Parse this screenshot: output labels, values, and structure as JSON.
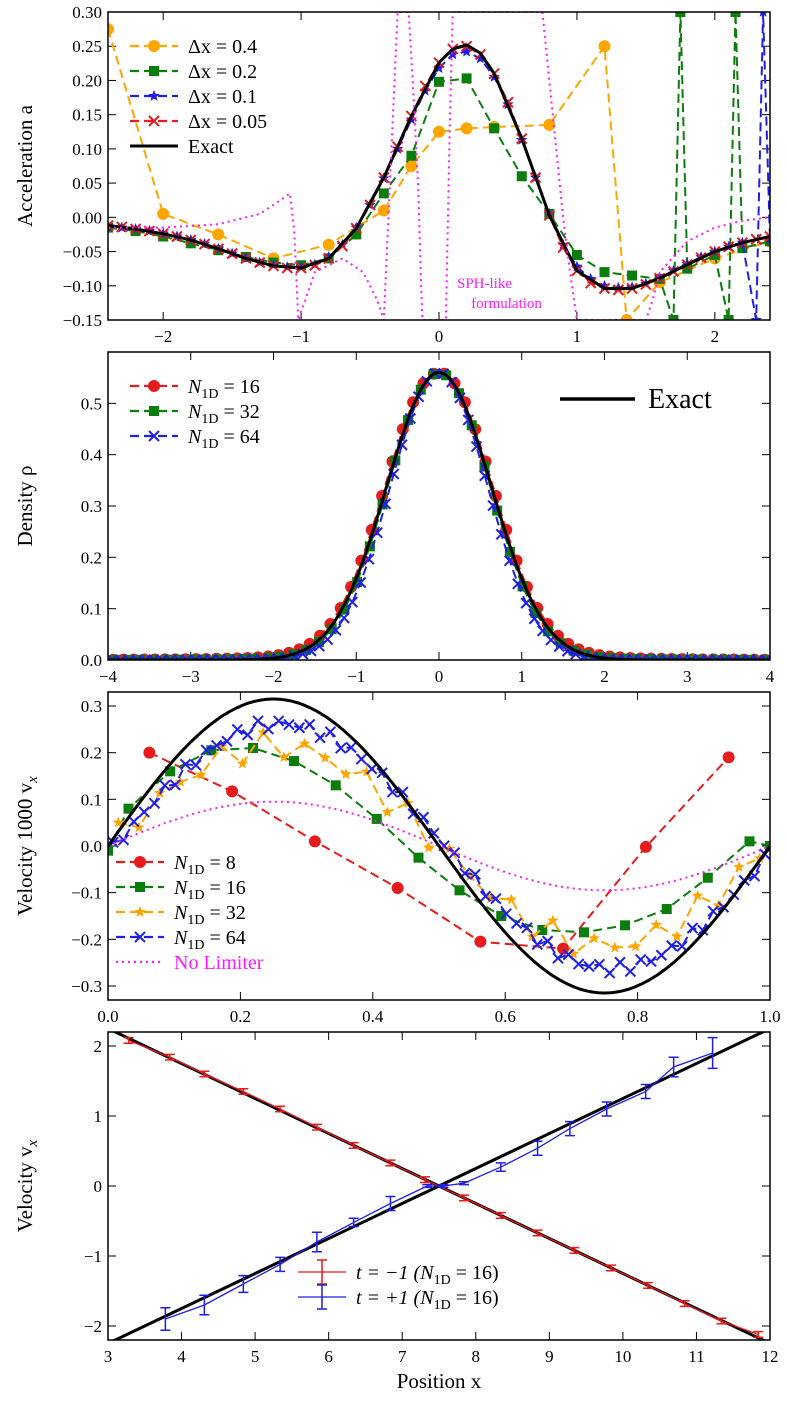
{
  "colors": {
    "orange": "#ffa500",
    "green": "#0b7d0b",
    "blue": "#1f1fe6",
    "red": "#e61c1c",
    "magenta": "#ff1aff",
    "exact": "#000000"
  },
  "chart_data": [
    {
      "type": "line",
      "id": "accel",
      "ylabel": "Acceleration a",
      "xlim": [
        -2.4,
        2.4
      ],
      "ylim": [
        -0.15,
        0.3
      ],
      "xticks": [
        -2,
        -1,
        0,
        1,
        2
      ],
      "yticks": [
        -0.15,
        -0.1,
        -0.05,
        0.0,
        0.05,
        0.1,
        0.15,
        0.2,
        0.25,
        0.3
      ],
      "ytick_labels": [
        "−0.15",
        "−0.10",
        "−0.05",
        "0.00",
        "0.05",
        "0.10",
        "0.15",
        "0.20",
        "0.25",
        "0.30"
      ],
      "xtick_labels": [
        "−2",
        "−1",
        "0",
        "1",
        "2"
      ],
      "annotation": {
        "line1": "SPH-like",
        "line2": "formulation",
        "x": 0.33,
        "y": -0.118
      },
      "legend": "top-left",
      "series": [
        {
          "name": "Δx = 0.4",
          "color_key": "orange",
          "marker": "circle",
          "dash": "dashed",
          "x": [
            -2.4,
            -2.0,
            -1.6,
            -1.2,
            -0.8,
            -0.4,
            -0.2,
            0.0,
            0.2,
            0.4,
            0.8,
            1.2,
            1.36,
            1.6,
            2.0,
            2.4
          ],
          "y": [
            0.275,
            0.005,
            -0.025,
            -0.06,
            -0.04,
            0.01,
            0.075,
            0.125,
            0.13,
            0.132,
            0.135,
            0.25,
            -0.15,
            -0.095,
            -0.06,
            -0.035
          ]
        },
        {
          "name": "Δx = 0.2",
          "color_key": "green",
          "marker": "square",
          "dash": "dashed",
          "x": [
            -2.4,
            -2.2,
            -2.0,
            -1.8,
            -1.6,
            -1.4,
            -1.2,
            -1.0,
            -0.8,
            -0.6,
            -0.4,
            -0.2,
            0.0,
            0.2,
            0.4,
            0.6,
            0.8,
            1.0,
            1.2,
            1.4,
            1.6,
            1.7,
            1.75,
            1.8,
            2.0,
            2.1,
            2.15,
            2.2,
            2.4
          ],
          "y": [
            -0.015,
            -0.02,
            -0.028,
            -0.038,
            -0.048,
            -0.058,
            -0.066,
            -0.07,
            -0.06,
            -0.025,
            0.035,
            0.09,
            0.198,
            0.203,
            0.13,
            0.06,
            0.005,
            -0.055,
            -0.08,
            -0.085,
            -0.09,
            -0.15,
            0.3,
            -0.075,
            -0.055,
            -0.15,
            0.3,
            -0.045,
            -0.035
          ]
        },
        {
          "name": "Δx = 0.1",
          "color_key": "blue",
          "marker": "star",
          "dash": "dashed",
          "x": [
            -2.4,
            -2.3,
            -2.2,
            -2.1,
            -2.0,
            -1.9,
            -1.8,
            -1.7,
            -1.6,
            -1.5,
            -1.4,
            -1.3,
            -1.2,
            -1.1,
            -1.0,
            -0.9,
            -0.8,
            -0.7,
            -0.6,
            -0.5,
            -0.4,
            -0.3,
            -0.2,
            -0.1,
            0.0,
            0.1,
            0.2,
            0.3,
            0.4,
            0.5,
            0.6,
            0.7,
            0.8,
            0.9,
            1.0,
            1.1,
            1.2,
            1.3,
            1.4,
            1.5,
            1.6,
            1.7,
            1.8,
            1.9,
            2.0,
            2.1,
            2.2,
            2.3,
            2.35,
            2.4
          ],
          "y": [
            -0.013,
            -0.015,
            -0.017,
            -0.02,
            -0.024,
            -0.028,
            -0.033,
            -0.039,
            -0.046,
            -0.053,
            -0.06,
            -0.066,
            -0.07,
            -0.073,
            -0.073,
            -0.069,
            -0.058,
            -0.04,
            -0.015,
            0.018,
            0.057,
            0.1,
            0.143,
            0.185,
            0.218,
            0.238,
            0.242,
            0.232,
            0.205,
            0.165,
            0.113,
            0.058,
            0.005,
            -0.04,
            -0.072,
            -0.09,
            -0.1,
            -0.103,
            -0.102,
            -0.097,
            -0.088,
            -0.078,
            -0.068,
            -0.058,
            -0.05,
            -0.043,
            -0.037,
            -0.15,
            0.3,
            -0.032
          ]
        },
        {
          "name": "Δx = 0.05",
          "color_key": "red",
          "marker": "x",
          "dash": "dashed",
          "x": [
            -2.4,
            -2.3,
            -2.2,
            -2.1,
            -2.0,
            -1.9,
            -1.8,
            -1.7,
            -1.6,
            -1.5,
            -1.4,
            -1.3,
            -1.2,
            -1.1,
            -1.0,
            -0.9,
            -0.8,
            -0.7,
            -0.6,
            -0.5,
            -0.4,
            -0.3,
            -0.2,
            -0.1,
            0.0,
            0.1,
            0.2,
            0.3,
            0.4,
            0.5,
            0.6,
            0.7,
            0.8,
            0.9,
            1.0,
            1.1,
            1.2,
            1.3,
            1.4,
            1.5,
            1.6,
            1.7,
            1.8,
            1.9,
            2.0,
            2.1,
            2.2,
            2.3,
            2.4
          ],
          "y": [
            -0.012,
            -0.014,
            -0.017,
            -0.02,
            -0.024,
            -0.028,
            -0.033,
            -0.039,
            -0.046,
            -0.053,
            -0.06,
            -0.066,
            -0.071,
            -0.074,
            -0.074,
            -0.07,
            -0.06,
            -0.042,
            -0.016,
            0.018,
            0.058,
            0.103,
            0.148,
            0.192,
            0.226,
            0.246,
            0.25,
            0.238,
            0.21,
            0.168,
            0.115,
            0.058,
            0.003,
            -0.044,
            -0.078,
            -0.096,
            -0.104,
            -0.106,
            -0.104,
            -0.098,
            -0.089,
            -0.079,
            -0.069,
            -0.059,
            -0.05,
            -0.043,
            -0.037,
            -0.032,
            -0.028
          ]
        },
        {
          "name": "Exact",
          "color_key": "exact",
          "marker": "none",
          "dash": "solid",
          "width": 3,
          "x": [
            -2.4,
            -2.2,
            -2.0,
            -1.8,
            -1.6,
            -1.4,
            -1.2,
            -1.0,
            -0.8,
            -0.6,
            -0.4,
            -0.2,
            0.0,
            0.1,
            0.2,
            0.3,
            0.4,
            0.6,
            0.8,
            1.0,
            1.2,
            1.4,
            1.6,
            1.8,
            2.0,
            2.2,
            2.4
          ],
          "y": [
            -0.012,
            -0.017,
            -0.024,
            -0.033,
            -0.046,
            -0.06,
            -0.071,
            -0.074,
            -0.06,
            -0.016,
            0.058,
            0.148,
            0.226,
            0.246,
            0.252,
            0.24,
            0.21,
            0.115,
            0.003,
            -0.078,
            -0.104,
            -0.104,
            -0.089,
            -0.069,
            -0.05,
            -0.037,
            -0.028
          ]
        },
        {
          "name": "SPH-like formulation",
          "color_key": "magenta",
          "marker": "none",
          "dash": "dotted",
          "legend": false,
          "x": [
            -2.4,
            -2.0,
            -1.6,
            -1.3,
            -1.15,
            -1.08,
            -1.05,
            -1.02,
            -0.9,
            -0.7,
            -0.55,
            -0.45,
            -0.4,
            -0.3,
            -0.22,
            -0.18,
            -0.15,
            -0.13,
            -0.12,
            0.05,
            0.08,
            0.1,
            0.2,
            0.4,
            0.5,
            0.7,
            0.75,
            0.8,
            0.85,
            0.9,
            0.95,
            1.0,
            1.1,
            1.3,
            1.5,
            1.55,
            1.6,
            1.8,
            2.0,
            2.2,
            2.4
          ],
          "y": [
            -0.015,
            -0.015,
            -0.01,
            0.005,
            0.025,
            0.035,
            -0.02,
            -0.15,
            -0.08,
            -0.06,
            -0.08,
            -0.12,
            -0.15,
            0.3,
            0.3,
            0.16,
            0.04,
            -0.1,
            -0.15,
            -0.15,
            0.15,
            0.3,
            0.3,
            0.3,
            0.3,
            0.3,
            0.3,
            0.2,
            0.1,
            0.0,
            -0.08,
            -0.15,
            -0.15,
            -0.15,
            -0.15,
            -0.12,
            -0.08,
            -0.035,
            -0.015,
            -0.005,
            0.0
          ]
        }
      ]
    },
    {
      "type": "line",
      "id": "density",
      "ylabel": "Density ρ",
      "xlim": [
        -4,
        4
      ],
      "ylim": [
        0.0,
        0.6
      ],
      "xticks": [
        -4,
        -3,
        -2,
        -1,
        0,
        1,
        2,
        3,
        4
      ],
      "xtick_labels": [
        "−4",
        "−3",
        "−2",
        "−1",
        "0",
        "1",
        "2",
        "3",
        "4"
      ],
      "yticks": [
        0.0,
        0.1,
        0.2,
        0.3,
        0.4,
        0.5
      ],
      "ytick_labels": [
        "0.0",
        "0.1",
        "0.2",
        "0.3",
        "0.4",
        "0.5"
      ],
      "legend": "top-left",
      "exact_legend": "Exact",
      "series": [
        {
          "name": "N1D = 16",
          "label_base": "N",
          "label_sub": "1D",
          "label_rest": " = 16",
          "color_key": "red",
          "marker": "circle",
          "dash": "dashed",
          "gen": "gauss",
          "amp": 0.56,
          "sigma": 0.62,
          "tail": 0.045,
          "npts": 64
        },
        {
          "name": "N1D = 32",
          "label_base": "N",
          "label_sub": "1D",
          "label_rest": " = 32",
          "color_key": "green",
          "marker": "square",
          "dash": "dashed",
          "gen": "gauss",
          "amp": 0.56,
          "sigma": 0.6,
          "tail": 0.025,
          "npts": 52,
          "offset": 0.07
        },
        {
          "name": "N1D = 64",
          "label_base": "N",
          "label_sub": "1D",
          "label_rest": " = 64",
          "color_key": "blue",
          "marker": "x",
          "dash": "dashed",
          "gen": "gauss",
          "amp": 0.56,
          "sigma": 0.58,
          "tail": 0.01,
          "npts": 80,
          "offset": 0.03
        },
        {
          "name": "Exact",
          "color_key": "exact",
          "marker": "none",
          "dash": "solid",
          "width": 3,
          "gen": "gauss",
          "amp": 0.56,
          "sigma": 0.63,
          "tail": 0.0,
          "npts": 300
        }
      ]
    },
    {
      "type": "line",
      "id": "velocity1000",
      "ylabel": "Velocity 1000 v",
      "ylabel_sub": "x",
      "xlim": [
        0.0,
        1.0
      ],
      "ylim": [
        -0.33,
        0.33
      ],
      "xticks": [
        0.0,
        0.2,
        0.4,
        0.6,
        0.8,
        1.0
      ],
      "xtick_labels": [
        "0.0",
        "0.2",
        "0.4",
        "0.6",
        "0.8",
        "1.0"
      ],
      "yticks": [
        -0.3,
        -0.2,
        -0.1,
        0.0,
        0.1,
        0.2,
        0.3
      ],
      "ytick_labels": [
        "−0.3",
        "−0.2",
        "−0.1",
        "0.0",
        "0.1",
        "0.2",
        "0.3"
      ],
      "legend": "bottom-left",
      "series": [
        {
          "name": "N1D = 8",
          "label_base": "N",
          "label_sub": "1D",
          "label_rest": " = 8",
          "color_key": "red",
          "marker": "circle",
          "dash": "dashed",
          "x": [
            0.0625,
            0.1875,
            0.3125,
            0.4375,
            0.5625,
            0.6875,
            0.8125,
            0.9375
          ],
          "y": [
            0.2,
            0.117,
            0.01,
            -0.09,
            -0.205,
            -0.22,
            -0.002,
            0.19
          ]
        },
        {
          "name": "N1D = 16",
          "label_base": "N",
          "label_sub": "1D",
          "label_rest": " = 16",
          "color_key": "green",
          "marker": "square",
          "dash": "dashed",
          "x": [
            0.0,
            0.031,
            0.094,
            0.156,
            0.219,
            0.281,
            0.344,
            0.406,
            0.469,
            0.531,
            0.594,
            0.656,
            0.719,
            0.781,
            0.844,
            0.906,
            0.969,
            1.0
          ],
          "y": [
            -0.01,
            0.08,
            0.16,
            0.205,
            0.21,
            0.182,
            0.13,
            0.058,
            -0.025,
            -0.095,
            -0.15,
            -0.18,
            -0.185,
            -0.17,
            -0.135,
            -0.068,
            0.01,
            0.0
          ]
        },
        {
          "name": "N1D = 32",
          "label_base": "N",
          "label_sub": "1D",
          "label_rest": " = 32",
          "color_key": "orange",
          "marker": "star",
          "dash": "dashed",
          "gen": "sine",
          "amp": 0.215,
          "noise": 0.03,
          "npts": 32,
          "phase": 0.0
        },
        {
          "name": "N1D = 64",
          "label_base": "N",
          "label_sub": "1D",
          "label_rest": " = 64",
          "color_key": "blue",
          "marker": "x",
          "dash": "dashed",
          "gen": "sine",
          "amp": 0.262,
          "noise": 0.012,
          "npts": 64,
          "phase": -0.01
        },
        {
          "name": "No Limiter",
          "color_key": "magenta",
          "marker": "none",
          "dash": "dotted",
          "gen": "sine",
          "amp": 0.095,
          "noise": 0.0,
          "npts": 200,
          "phase": 0.0
        },
        {
          "name": "Exact",
          "color_key": "exact",
          "marker": "none",
          "dash": "solid",
          "width": 3,
          "legend": false,
          "gen": "sine",
          "amp": 0.315,
          "noise": 0.0,
          "npts": 300,
          "phase": 0.0
        }
      ]
    },
    {
      "type": "line",
      "id": "velocity",
      "ylabel": "Velocity v",
      "ylabel_sub": "x",
      "xlabel": "Position x",
      "xlim": [
        3,
        12
      ],
      "ylim": [
        -2.2,
        2.2
      ],
      "xticks": [
        3,
        4,
        5,
        6,
        7,
        8,
        9,
        10,
        11,
        12
      ],
      "xtick_labels": [
        "3",
        "4",
        "5",
        "6",
        "7",
        "8",
        "9",
        "10",
        "11",
        "12"
      ],
      "yticks": [
        -2,
        -1,
        0,
        1,
        2
      ],
      "ytick_labels": [
        "−2",
        "−1",
        "0",
        "1",
        "2"
      ],
      "legend": "bottom-center",
      "series": [
        {
          "name": "Exact decreasing",
          "color_key": "exact",
          "marker": "none",
          "dash": "solid",
          "width": 3,
          "legend": false,
          "x": [
            3,
            12
          ],
          "y": [
            2.25,
            -2.25
          ]
        },
        {
          "name": "Exact increasing",
          "color_key": "exact",
          "marker": "none",
          "dash": "solid",
          "width": 3,
          "legend": false,
          "x": [
            3,
            12
          ],
          "y": [
            -2.25,
            2.25
          ]
        },
        {
          "name": "t = −1 (N1D = 16)",
          "label_base": "t = −1 (N",
          "label_sub": "1D",
          "label_rest": " = 16)",
          "color_key": "red",
          "marker": "errorbar",
          "dash": "solid",
          "width": 1.3,
          "x": [
            3.28,
            3.84,
            4.31,
            4.84,
            5.34,
            5.84,
            6.34,
            6.84,
            7.31,
            7.84,
            8.34,
            8.84,
            9.34,
            9.84,
            10.34,
            10.84,
            11.34,
            11.84
          ],
          "y": [
            2.08,
            1.84,
            1.6,
            1.35,
            1.1,
            0.84,
            0.58,
            0.33,
            0.09,
            -0.17,
            -0.42,
            -0.67,
            -0.92,
            -1.17,
            -1.42,
            -1.68,
            -1.93,
            -2.12
          ],
          "err": [
            0.04,
            0.04,
            0.04,
            0.04,
            0.04,
            0.04,
            0.04,
            0.04,
            0.04,
            0.04,
            0.04,
            0.04,
            0.04,
            0.04,
            0.04,
            0.04,
            0.04,
            0.04
          ]
        },
        {
          "name": "t = +1 (N1D = 16)",
          "label_base": "t = +1 (N",
          "label_sub": "1D",
          "label_rest": " = 16)",
          "color_key": "blue",
          "marker": "errorbar",
          "dash": "solid",
          "width": 1.3,
          "x": [
            3.78,
            4.31,
            4.84,
            5.34,
            5.84,
            6.34,
            6.84,
            7.34,
            7.56,
            7.84,
            8.34,
            8.84,
            9.28,
            9.78,
            10.31,
            10.69,
            11.22
          ],
          "y": [
            -1.9,
            -1.7,
            -1.4,
            -1.12,
            -0.8,
            -0.52,
            -0.25,
            0.0,
            0.0,
            0.04,
            0.27,
            0.54,
            0.82,
            1.1,
            1.35,
            1.7,
            1.9
          ],
          "err": [
            0.16,
            0.14,
            0.12,
            0.1,
            0.14,
            0.06,
            0.1,
            0.02,
            0.02,
            0.02,
            0.06,
            0.1,
            0.1,
            0.1,
            0.1,
            0.14,
            0.22
          ]
        }
      ]
    }
  ]
}
